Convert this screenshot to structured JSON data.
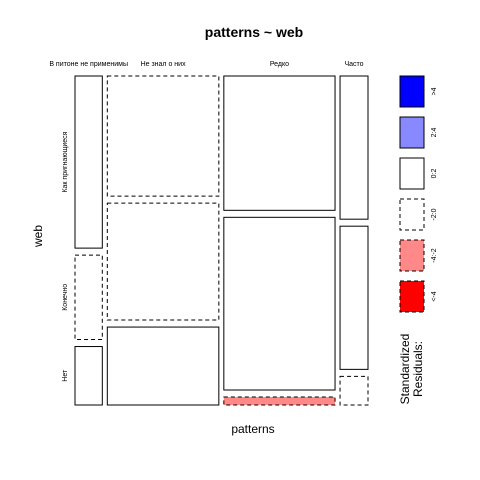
{
  "chart_data": {
    "type": "mosaic",
    "title": "patterns ~ web",
    "xlabel": "patterns",
    "ylabel": "web",
    "x_categories": [
      "В питоне не применимы",
      "Не знал о них",
      "Редко",
      "Часто"
    ],
    "y_categories": [
      "Как пригнающиеся",
      "Конечно",
      "Нет"
    ],
    "x_proportions": [
      0.083,
      0.339,
      0.338,
      0.085
    ],
    "cells": [
      {
        "x": "В питоне не применимы",
        "y": "Как пригнающиеся",
        "proportion": 0.53,
        "residual_class": "0:2"
      },
      {
        "x": "В питоне не применимы",
        "y": "Конечно",
        "proportion": 0.26,
        "residual_class": "-2:0"
      },
      {
        "x": "В питоне не применимы",
        "y": "Нет",
        "proportion": 0.18,
        "residual_class": "0:2"
      },
      {
        "x": "Не знал о них",
        "y": "Как пригнающиеся",
        "proportion": 0.37,
        "residual_class": "-2:0"
      },
      {
        "x": "Не знал о них",
        "y": "Конечно",
        "proportion": 0.36,
        "residual_class": "-2:0"
      },
      {
        "x": "Не знал о них",
        "y": "Нет",
        "proportion": 0.24,
        "residual_class": "0:2"
      },
      {
        "x": "Редко",
        "y": "Как пригнающиеся",
        "proportion": 0.42,
        "residual_class": "0:2"
      },
      {
        "x": "Редко",
        "y": "Конечно",
        "proportion": 0.54,
        "residual_class": "0:2"
      },
      {
        "x": "Редко",
        "y": "Нет",
        "proportion": 0.025,
        "residual_class": "-4:-2"
      },
      {
        "x": "Часто",
        "y": "Как пригнающиеся",
        "proportion": 0.45,
        "residual_class": "0:2"
      },
      {
        "x": "Часто",
        "y": "Конечно",
        "proportion": 0.45,
        "residual_class": "0:2"
      },
      {
        "x": "Часто",
        "y": "Нет",
        "proportion": 0.09,
        "residual_class": "-2:0"
      }
    ],
    "legend": {
      "title_lines": [
        "Standardized",
        "Residuals:"
      ],
      "placement": "right",
      "items": [
        {
          "label": ">4",
          "fill": "#0000FF",
          "dashed": false
        },
        {
          "label": "2:4",
          "fill": "#8888FF",
          "dashed": false
        },
        {
          "label": "0:2",
          "fill": "#FFFFFF",
          "dashed": false
        },
        {
          "label": "-2:0",
          "fill": "#FFFFFF",
          "dashed": true
        },
        {
          "label": "-4:-2",
          "fill": "#FF8888",
          "dashed": true
        },
        {
          "label": "<-4",
          "fill": "#FF0000",
          "dashed": true
        }
      ]
    }
  }
}
